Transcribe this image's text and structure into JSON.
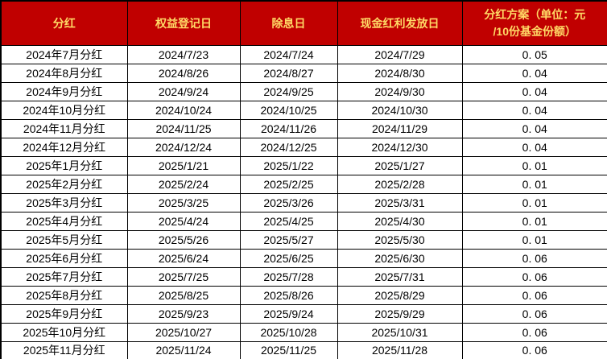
{
  "chart_data": {
    "type": "table",
    "columns": [
      "分红",
      "权益登记日",
      "除息日",
      "现金红利发放日",
      "分红方案（单位：元\n/10份基金份额）"
    ],
    "rows": [
      [
        "2024年7月分红",
        "2024/7/23",
        "2024/7/24",
        "2024/7/29",
        "0. 05"
      ],
      [
        "2024年8月分红",
        "2024/8/26",
        "2024/8/27",
        "2024/8/30",
        "0. 04"
      ],
      [
        "2024年9月分红",
        "2024/9/24",
        "2024/9/25",
        "2024/9/30",
        "0. 04"
      ],
      [
        "2024年10月分红",
        "2024/10/24",
        "2024/10/25",
        "2024/10/30",
        "0. 04"
      ],
      [
        "2024年11月分红",
        "2024/11/25",
        "2024/11/26",
        "2024/11/29",
        "0. 04"
      ],
      [
        "2024年12月分红",
        "2024/12/24",
        "2024/12/25",
        "2024/12/30",
        "0. 04"
      ],
      [
        "2025年1月分红",
        "2025/1/21",
        "2025/1/22",
        "2025/1/27",
        "0. 01"
      ],
      [
        "2025年2月分红",
        "2025/2/24",
        "2025/2/25",
        "2025/2/28",
        "0. 01"
      ],
      [
        "2025年3月分红",
        "2025/3/25",
        "2025/3/26",
        "2025/3/31",
        "0. 01"
      ],
      [
        "2025年4月分红",
        "2025/4/24",
        "2025/4/25",
        "2025/4/30",
        "0. 01"
      ],
      [
        "2025年5月分红",
        "2025/5/26",
        "2025/5/27",
        "2025/5/30",
        "0. 01"
      ],
      [
        "2025年6月分红",
        "2025/6/24",
        "2025/6/25",
        "2025/6/30",
        "0. 06"
      ],
      [
        "2025年7月分红",
        "2025/7/25",
        "2025/7/28",
        "2025/7/31",
        "0. 06"
      ],
      [
        "2025年8月分红",
        "2025/8/25",
        "2025/8/26",
        "2025/8/29",
        "0. 06"
      ],
      [
        "2025年9月分红",
        "2025/9/23",
        "2025/9/24",
        "2025/9/29",
        "0. 06"
      ],
      [
        "2025年10月分红",
        "2025/10/27",
        "2025/10/28",
        "2025/10/31",
        "0. 06"
      ],
      [
        "2025年11月分红",
        "2025/11/24",
        "2025/11/25",
        "2025/11/28",
        "0. 06"
      ]
    ]
  },
  "colors": {
    "header_bg": "#C00000",
    "header_text": "#FFD966",
    "body_bg": "#FFFFFF",
    "body_text": "#000000",
    "border": "#000000"
  }
}
